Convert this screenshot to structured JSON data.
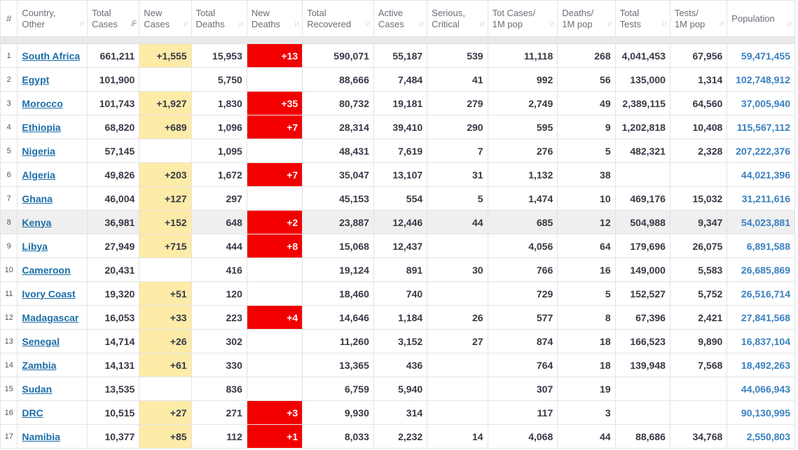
{
  "headers": {
    "rank": "#",
    "country": [
      "Country,",
      "Other"
    ],
    "total_cases": [
      "Total",
      "Cases"
    ],
    "new_cases": [
      "New",
      "Cases"
    ],
    "total_deaths": [
      "Total",
      "Deaths"
    ],
    "new_deaths": [
      "New",
      "Deaths"
    ],
    "total_recovered": [
      "Total",
      "Recovered"
    ],
    "active_cases": [
      "Active",
      "Cases"
    ],
    "serious": [
      "Serious,",
      "Critical"
    ],
    "cases_per_m": [
      "Tot Cases/",
      "1M pop"
    ],
    "deaths_per_m": [
      "Deaths/",
      "1M pop"
    ],
    "total_tests": [
      "Total",
      "Tests"
    ],
    "tests_per_m": [
      "Tests/",
      "1M pop"
    ],
    "population": [
      "Population"
    ]
  },
  "sort": {
    "column": "total_cases",
    "direction": "descending"
  },
  "highlighted_row": 7,
  "colors": {
    "new_cases_bg": "#fdeba8",
    "new_deaths_bg": "#f20000",
    "link": "#1d6ea8",
    "population": "#3a80c0"
  },
  "rows": [
    {
      "rank": "1",
      "country": "South Africa",
      "total_cases": "661,211",
      "new_cases": "+1,555",
      "total_deaths": "15,953",
      "new_deaths": "+13",
      "total_recovered": "590,071",
      "active_cases": "55,187",
      "serious": "539",
      "cases_per_m": "11,118",
      "deaths_per_m": "268",
      "total_tests": "4,041,453",
      "tests_per_m": "67,956",
      "population": "59,471,455"
    },
    {
      "rank": "2",
      "country": "Egypt",
      "total_cases": "101,900",
      "new_cases": "",
      "total_deaths": "5,750",
      "new_deaths": "",
      "total_recovered": "88,666",
      "active_cases": "7,484",
      "serious": "41",
      "cases_per_m": "992",
      "deaths_per_m": "56",
      "total_tests": "135,000",
      "tests_per_m": "1,314",
      "population": "102,748,912"
    },
    {
      "rank": "3",
      "country": "Morocco",
      "total_cases": "101,743",
      "new_cases": "+1,927",
      "total_deaths": "1,830",
      "new_deaths": "+35",
      "total_recovered": "80,732",
      "active_cases": "19,181",
      "serious": "279",
      "cases_per_m": "2,749",
      "deaths_per_m": "49",
      "total_tests": "2,389,115",
      "tests_per_m": "64,560",
      "population": "37,005,940"
    },
    {
      "rank": "4",
      "country": "Ethiopia",
      "total_cases": "68,820",
      "new_cases": "+689",
      "total_deaths": "1,096",
      "new_deaths": "+7",
      "total_recovered": "28,314",
      "active_cases": "39,410",
      "serious": "290",
      "cases_per_m": "595",
      "deaths_per_m": "9",
      "total_tests": "1,202,818",
      "tests_per_m": "10,408",
      "population": "115,567,112"
    },
    {
      "rank": "5",
      "country": "Nigeria",
      "total_cases": "57,145",
      "new_cases": "",
      "total_deaths": "1,095",
      "new_deaths": "",
      "total_recovered": "48,431",
      "active_cases": "7,619",
      "serious": "7",
      "cases_per_m": "276",
      "deaths_per_m": "5",
      "total_tests": "482,321",
      "tests_per_m": "2,328",
      "population": "207,222,376"
    },
    {
      "rank": "6",
      "country": "Algeria",
      "total_cases": "49,826",
      "new_cases": "+203",
      "total_deaths": "1,672",
      "new_deaths": "+7",
      "total_recovered": "35,047",
      "active_cases": "13,107",
      "serious": "31",
      "cases_per_m": "1,132",
      "deaths_per_m": "38",
      "total_tests": "",
      "tests_per_m": "",
      "population": "44,021,396"
    },
    {
      "rank": "7",
      "country": "Ghana",
      "total_cases": "46,004",
      "new_cases": "+127",
      "total_deaths": "297",
      "new_deaths": "",
      "total_recovered": "45,153",
      "active_cases": "554",
      "serious": "5",
      "cases_per_m": "1,474",
      "deaths_per_m": "10",
      "total_tests": "469,176",
      "tests_per_m": "15,032",
      "population": "31,211,616"
    },
    {
      "rank": "8",
      "country": "Kenya",
      "total_cases": "36,981",
      "new_cases": "+152",
      "total_deaths": "648",
      "new_deaths": "+2",
      "total_recovered": "23,887",
      "active_cases": "12,446",
      "serious": "44",
      "cases_per_m": "685",
      "deaths_per_m": "12",
      "total_tests": "504,988",
      "tests_per_m": "9,347",
      "population": "54,023,881"
    },
    {
      "rank": "9",
      "country": "Libya",
      "total_cases": "27,949",
      "new_cases": "+715",
      "total_deaths": "444",
      "new_deaths": "+8",
      "total_recovered": "15,068",
      "active_cases": "12,437",
      "serious": "",
      "cases_per_m": "4,056",
      "deaths_per_m": "64",
      "total_tests": "179,696",
      "tests_per_m": "26,075",
      "population": "6,891,588"
    },
    {
      "rank": "10",
      "country": "Cameroon",
      "total_cases": "20,431",
      "new_cases": "",
      "total_deaths": "416",
      "new_deaths": "",
      "total_recovered": "19,124",
      "active_cases": "891",
      "serious": "30",
      "cases_per_m": "766",
      "deaths_per_m": "16",
      "total_tests": "149,000",
      "tests_per_m": "5,583",
      "population": "26,685,869"
    },
    {
      "rank": "11",
      "country": "Ivory Coast",
      "total_cases": "19,320",
      "new_cases": "+51",
      "total_deaths": "120",
      "new_deaths": "",
      "total_recovered": "18,460",
      "active_cases": "740",
      "serious": "",
      "cases_per_m": "729",
      "deaths_per_m": "5",
      "total_tests": "152,527",
      "tests_per_m": "5,752",
      "population": "26,516,714"
    },
    {
      "rank": "12",
      "country": "Madagascar",
      "total_cases": "16,053",
      "new_cases": "+33",
      "total_deaths": "223",
      "new_deaths": "+4",
      "total_recovered": "14,646",
      "active_cases": "1,184",
      "serious": "26",
      "cases_per_m": "577",
      "deaths_per_m": "8",
      "total_tests": "67,396",
      "tests_per_m": "2,421",
      "population": "27,841,568"
    },
    {
      "rank": "13",
      "country": "Senegal",
      "total_cases": "14,714",
      "new_cases": "+26",
      "total_deaths": "302",
      "new_deaths": "",
      "total_recovered": "11,260",
      "active_cases": "3,152",
      "serious": "27",
      "cases_per_m": "874",
      "deaths_per_m": "18",
      "total_tests": "166,523",
      "tests_per_m": "9,890",
      "population": "16,837,104"
    },
    {
      "rank": "14",
      "country": "Zambia",
      "total_cases": "14,131",
      "new_cases": "+61",
      "total_deaths": "330",
      "new_deaths": "",
      "total_recovered": "13,365",
      "active_cases": "436",
      "serious": "",
      "cases_per_m": "764",
      "deaths_per_m": "18",
      "total_tests": "139,948",
      "tests_per_m": "7,568",
      "population": "18,492,263"
    },
    {
      "rank": "15",
      "country": "Sudan",
      "total_cases": "13,535",
      "new_cases": "",
      "total_deaths": "836",
      "new_deaths": "",
      "total_recovered": "6,759",
      "active_cases": "5,940",
      "serious": "",
      "cases_per_m": "307",
      "deaths_per_m": "19",
      "total_tests": "",
      "tests_per_m": "",
      "population": "44,066,943"
    },
    {
      "rank": "16",
      "country": "DRC",
      "total_cases": "10,515",
      "new_cases": "+27",
      "total_deaths": "271",
      "new_deaths": "+3",
      "total_recovered": "9,930",
      "active_cases": "314",
      "serious": "",
      "cases_per_m": "117",
      "deaths_per_m": "3",
      "total_tests": "",
      "tests_per_m": "",
      "population": "90,130,995"
    },
    {
      "rank": "17",
      "country": "Namibia",
      "total_cases": "10,377",
      "new_cases": "+85",
      "total_deaths": "112",
      "new_deaths": "+1",
      "total_recovered": "8,033",
      "active_cases": "2,232",
      "serious": "14",
      "cases_per_m": "4,068",
      "deaths_per_m": "44",
      "total_tests": "88,686",
      "tests_per_m": "34,768",
      "population": "2,550,803"
    }
  ]
}
